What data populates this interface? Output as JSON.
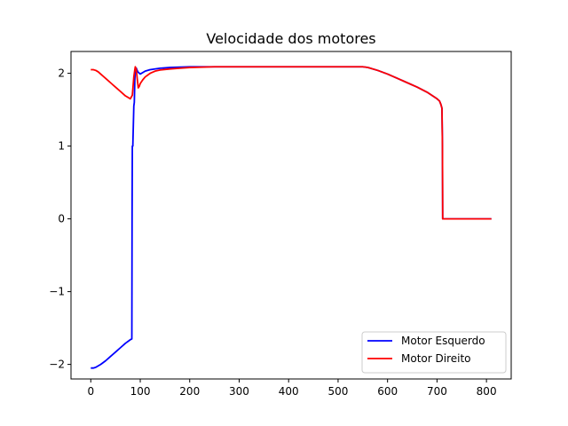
{
  "chart_data": {
    "type": "line",
    "title": "Velocidade dos motores",
    "xlabel": "",
    "ylabel": "",
    "xlim": [
      -40,
      850
    ],
    "ylim": [
      -2.2,
      2.3
    ],
    "xticks": [
      0,
      100,
      200,
      300,
      400,
      500,
      600,
      700,
      800
    ],
    "xtick_labels": [
      "0",
      "100",
      "200",
      "300",
      "400",
      "500",
      "600",
      "700",
      "800"
    ],
    "yticks": [
      -2,
      -1,
      0,
      1,
      2
    ],
    "ytick_labels": [
      "−2",
      "−1",
      "0",
      "1",
      "2"
    ],
    "grid": false,
    "legend_position": "lower right",
    "series": [
      {
        "name": "Motor Esquerdo",
        "color": "#0000ff",
        "x": [
          0,
          5,
          10,
          15,
          20,
          30,
          40,
          50,
          60,
          70,
          80,
          83,
          83.5,
          84,
          85,
          87,
          88,
          89,
          90,
          92,
          95,
          100,
          110,
          120,
          140,
          160,
          180,
          200,
          250,
          300,
          400,
          500,
          550,
          560,
          580,
          600,
          620,
          640,
          660,
          680,
          700,
          705,
          708,
          710,
          711,
          711.5,
          712,
          720,
          800,
          810
        ],
        "y": [
          -2.05,
          -2.05,
          -2.04,
          -2.02,
          -2.0,
          -1.95,
          -1.89,
          -1.83,
          -1.77,
          -1.71,
          -1.66,
          -1.65,
          0.0,
          1.0,
          1.0,
          1.55,
          1.6,
          1.9,
          2.05,
          2.07,
          2.02,
          1.99,
          2.03,
          2.05,
          2.07,
          2.08,
          2.085,
          2.09,
          2.09,
          2.09,
          2.09,
          2.09,
          2.09,
          2.08,
          2.04,
          1.99,
          1.93,
          1.87,
          1.81,
          1.74,
          1.65,
          1.62,
          1.57,
          1.52,
          1.0,
          0.0,
          0.0,
          0.0,
          0.0,
          0.0
        ]
      },
      {
        "name": "Motor Direito",
        "color": "#ff0000",
        "x": [
          0,
          5,
          10,
          15,
          20,
          30,
          40,
          50,
          60,
          70,
          80,
          84,
          87,
          89,
          90,
          92,
          94,
          96,
          98,
          100,
          105,
          110,
          120,
          130,
          140,
          160,
          180,
          200,
          250,
          300,
          400,
          500,
          550,
          560,
          580,
          600,
          620,
          640,
          660,
          680,
          700,
          705,
          708,
          710,
          711,
          711.5,
          712,
          720,
          800,
          810
        ],
        "y": [
          2.05,
          2.05,
          2.04,
          2.02,
          1.99,
          1.93,
          1.87,
          1.81,
          1.75,
          1.69,
          1.65,
          1.7,
          1.95,
          2.05,
          2.09,
          2.05,
          1.92,
          1.8,
          1.82,
          1.86,
          1.91,
          1.95,
          2.0,
          2.03,
          2.045,
          2.06,
          2.07,
          2.08,
          2.09,
          2.09,
          2.09,
          2.09,
          2.09,
          2.08,
          2.04,
          1.99,
          1.93,
          1.87,
          1.81,
          1.74,
          1.65,
          1.62,
          1.57,
          1.52,
          1.0,
          0.0,
          0.0,
          0.0,
          0.0,
          0.0
        ]
      }
    ]
  }
}
